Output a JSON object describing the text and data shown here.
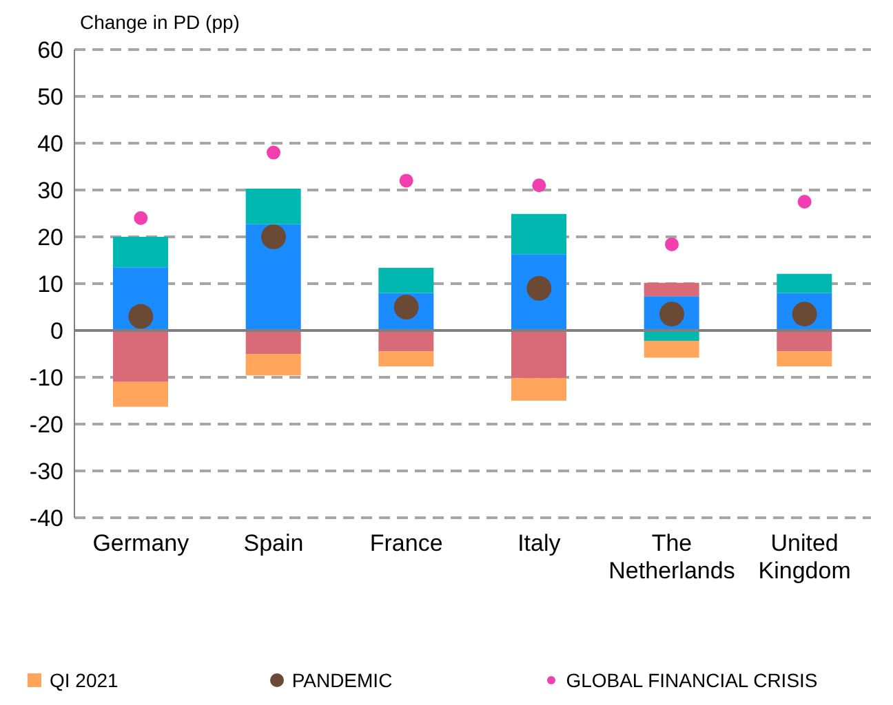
{
  "chart_data": {
    "type": "bar",
    "stacked": true,
    "ylabel": "Change in PD (pp)",
    "categories": [
      "Germany",
      "Spain",
      "France",
      "Italy",
      "The Netherlands",
      "United Kingdom"
    ],
    "series": [
      {
        "color": "#1a8cff",
        "values": [
          13.5,
          22.7,
          8,
          16.3,
          7.3,
          8
        ]
      },
      {
        "color": "#d96a78",
        "values": [
          -11,
          -5,
          -4.5,
          -10.2,
          2.9,
          -4.5
        ]
      },
      {
        "color": "#00b8b0",
        "values": [
          6.5,
          7.6,
          5.4,
          8.6,
          -2.2,
          4.1
        ]
      },
      {
        "name": "QI 2021",
        "color": "#ffa65c",
        "values": [
          -5.3,
          -4.6,
          -3.2,
          -4.8,
          -3.6,
          -3.2
        ]
      },
      {
        "name": "PANDEMIC",
        "type": "scatter",
        "marker": "circle",
        "color": "#6b4a35",
        "values": [
          3,
          20,
          5,
          9,
          3.5,
          3.5
        ]
      },
      {
        "name": "GLOBAL FINANCIAL CRISIS",
        "type": "scatter",
        "marker": "circle",
        "color": "#f23fb0",
        "values": [
          24,
          38,
          32,
          31,
          18.4,
          27.5
        ]
      }
    ],
    "ylim": [
      -40,
      60
    ],
    "yticks": [
      -40,
      -30,
      -20,
      -10,
      0,
      10,
      20,
      30,
      40,
      50,
      60
    ],
    "grid": "y",
    "legend": "bottom",
    "ref_lines": [
      {
        "axis": "y",
        "value": 0,
        "color": "#808080"
      }
    ]
  }
}
